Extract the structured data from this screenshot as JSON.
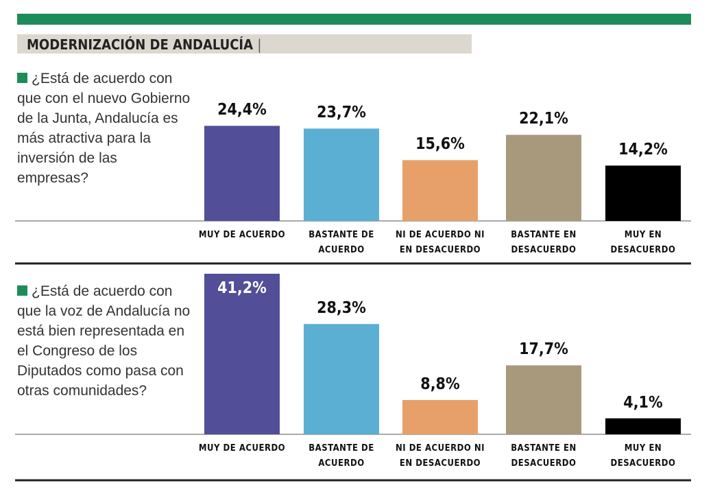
{
  "header": {
    "title": "MODERNIZACIÓN DE ANDALUCÍA"
  },
  "chart_data": [
    {
      "type": "bar",
      "title": "¿Está de acuerdo con que con el nuevo Gobierno de la Junta, Andalucía es más atractiva para la inversión de las empresas?",
      "categories": [
        "MUY DE ACUERDO",
        "BASTANTE DE ACUERDO",
        "NI DE ACUERDO NI EN DESACUERDO",
        "BASTANTE EN DESACUERDO",
        "MUY EN DESACUERDO"
      ],
      "values": [
        24.4,
        23.7,
        15.6,
        22.1,
        14.2
      ],
      "value_labels": [
        "24,4%",
        "23,7%",
        "15,6%",
        "22,1%",
        "14,2%"
      ],
      "colors": [
        "#524e97",
        "#5aafd3",
        "#e8a06a",
        "#a9997c",
        "#000000"
      ]
    },
    {
      "type": "bar",
      "title": "¿Está de acuerdo con que la voz de Andalucía no está bien representada en el Congreso de los Diputados como pasa con otras comunidades?",
      "categories": [
        "MUY DE ACUERDO",
        "BASTANTE DE ACUERDO",
        "NI DE ACUERDO NI EN DESACUERDO",
        "BASTANTE EN DESACUERDO",
        "MUY EN DESACUERDO"
      ],
      "values": [
        41.2,
        28.3,
        8.8,
        17.7,
        4.1
      ],
      "value_labels": [
        "41,2%",
        "28,3%",
        "8,8%",
        "17,7%",
        "4,1%"
      ],
      "colors": [
        "#524e97",
        "#5aafd3",
        "#e8a06a",
        "#a9997c",
        "#000000"
      ]
    }
  ]
}
